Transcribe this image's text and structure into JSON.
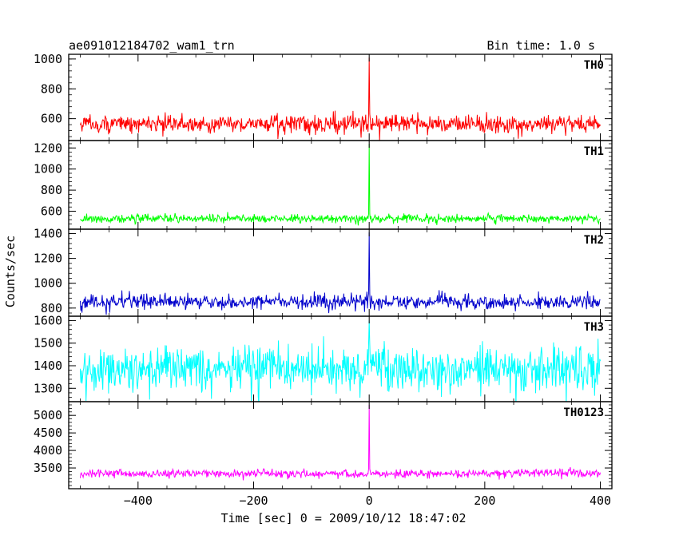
{
  "chart_data": {
    "type": "line",
    "title": "ae091012184702_wam1_trn",
    "subtitle": "Bin time: 1.0 s",
    "xlabel": "Time [sec] 0 = 2009/10/12 18:47:02",
    "ylabel": "Counts/sec",
    "x_range": [
      -500,
      400
    ],
    "xlim": [
      -520,
      420
    ],
    "x_ticks": [
      -400,
      -200,
      0,
      200,
      400
    ],
    "x_tick_labels": [
      "−400",
      "−200",
      "0",
      "200",
      "400"
    ],
    "grid": false,
    "legend": "none",
    "panels": [
      {
        "label": "TH0",
        "color": "#ff0000",
        "ylim": [
          475,
          1010
        ],
        "y_ticks": [
          600,
          800,
          1000
        ],
        "y_tick_labels": [
          "600",
          "800",
          "1000"
        ],
        "baseline": 565,
        "noise": 30,
        "spike_peak": 1010
      },
      {
        "label": "TH1",
        "color": "#00ff00",
        "ylim": [
          460,
          1240
        ],
        "y_ticks": [
          600,
          800,
          1000,
          1200
        ],
        "y_tick_labels": [
          "600",
          "800",
          "1000",
          "1200"
        ],
        "baseline": 530,
        "noise": 20,
        "spike_peak": 1240
      },
      {
        "label": "TH2",
        "color": "#0000cc",
        "ylim": [
          760,
          1410
        ],
        "y_ticks": [
          800,
          1000,
          1200,
          1400
        ],
        "y_tick_labels": [
          "800",
          "1000",
          "1200",
          "1400"
        ],
        "baseline": 850,
        "noise": 30,
        "spike_peak": 1410
      },
      {
        "label": "TH3",
        "color": "#00ffff",
        "ylim": [
          1255,
          1605
        ],
        "y_ticks": [
          1300,
          1400,
          1500,
          1600
        ],
        "y_tick_labels": [
          "1300",
          "1400",
          "1500",
          "1600"
        ],
        "baseline": 1385,
        "noise": 50,
        "spike_peak": 1600
      },
      {
        "label": "TH0123",
        "color": "#ff00ff",
        "ylim": [
          3000,
          5300
        ],
        "y_ticks": [
          3500,
          4000,
          4500,
          5000
        ],
        "y_tick_labels": [
          "3500",
          "4000",
          "4500",
          "5000"
        ],
        "baseline": 3340,
        "noise": 60,
        "spike_peak": 5300
      }
    ]
  }
}
